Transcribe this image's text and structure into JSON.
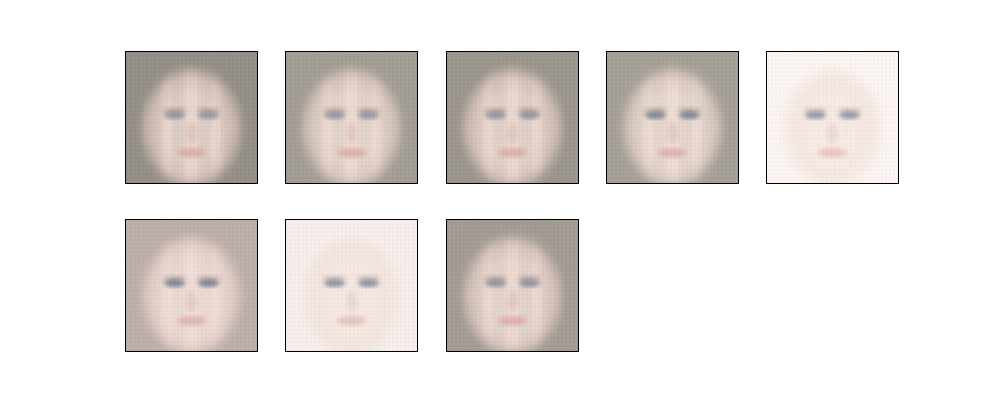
{
  "figure": {
    "tiles": [
      {
        "background": "#8f8a82",
        "skin": "#e7cfc3",
        "eyes": "#7a7c8a",
        "fade": 0.15
      },
      {
        "background": "#9a948c",
        "skin": "#ead4c8",
        "eyes": "#70778a",
        "fade": 0.25
      },
      {
        "background": "#948e86",
        "skin": "#e9d2c6",
        "eyes": "#6f7888",
        "fade": 0.2
      },
      {
        "background": "#9b958c",
        "skin": "#ecd7cc",
        "eyes": "#4f5e76",
        "fade": 0.3
      },
      {
        "background": "#fbf2ee",
        "skin": "#f2ddd3",
        "eyes": "#3e4a66",
        "fade": 0.85
      },
      {
        "background": "#b3a59e",
        "skin": "#efd6cd",
        "eyes": "#445674",
        "fade": 0.35
      },
      {
        "background": "#f5ebe7",
        "skin": "#f0d9cf",
        "eyes": "#3c4a67",
        "fade": 0.75
      },
      {
        "background": "#9a938b",
        "skin": "#ead3c8",
        "eyes": "#6c7588",
        "fade": 0.25
      }
    ]
  }
}
